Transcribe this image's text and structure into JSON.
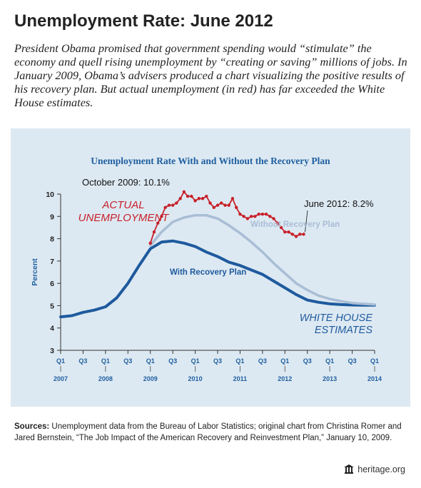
{
  "header": {
    "title": "Unemployment Rate: June 2012",
    "intro": "President Obama promised that government spending would “stimulate” the economy and quell rising unemployment by “creating or saving” millions of jobs. In January 2009, Obama’s advisers produced a chart visualizing the positive results of his recovery plan. But actual unemployment (in red) has far exceeded the White House estimates."
  },
  "sources": {
    "label": "Sources:",
    "text": " Unemployment data from the Bureau of Labor Statistics; original chart from Christina Romer and Jared Bernstein, “The Job Impact of the American Recovery and Reinvestment Plan,” January 10, 2009."
  },
  "footer": {
    "site": "heritage.org",
    "logo_icon": "bell-icon"
  },
  "colors": {
    "panel_bg": "#dde9f2",
    "title_blue": "#1f5fa0",
    "actual_red": "#c8202a",
    "with_plan_blue": "#1e5a9e",
    "without_plan_light": "#a9bdd6",
    "axis_dark": "#333333"
  },
  "chart_data": {
    "type": "line",
    "title": "Unemployment Rate With and Without the Recovery Plan",
    "ylabel": "Percent",
    "ylim": [
      3,
      10
    ],
    "yticks": [
      3,
      4,
      5,
      6,
      7,
      8,
      9,
      10
    ],
    "xlim": [
      2007.0,
      2014.0
    ],
    "x_quarter_ticks": [
      {
        "x": 2007.0,
        "label": "Q1"
      },
      {
        "x": 2007.5,
        "label": "Q3"
      },
      {
        "x": 2008.0,
        "label": "Q1"
      },
      {
        "x": 2008.5,
        "label": "Q3"
      },
      {
        "x": 2009.0,
        "label": "Q1"
      },
      {
        "x": 2009.5,
        "label": "Q3"
      },
      {
        "x": 2010.0,
        "label": "Q1"
      },
      {
        "x": 2010.5,
        "label": "Q3"
      },
      {
        "x": 2011.0,
        "label": "Q1"
      },
      {
        "x": 2011.5,
        "label": "Q3"
      },
      {
        "x": 2012.0,
        "label": "Q1"
      },
      {
        "x": 2012.5,
        "label": "Q3"
      },
      {
        "x": 2013.0,
        "label": "Q1"
      },
      {
        "x": 2013.5,
        "label": "Q3"
      },
      {
        "x": 2014.0,
        "label": "Q1"
      }
    ],
    "x_year_labels": [
      {
        "x": 2007.0,
        "label": "2007"
      },
      {
        "x": 2008.0,
        "label": "2008"
      },
      {
        "x": 2009.0,
        "label": "2009"
      },
      {
        "x": 2010.0,
        "label": "2010"
      },
      {
        "x": 2011.0,
        "label": "2011"
      },
      {
        "x": 2012.0,
        "label": "2012"
      },
      {
        "x": 2013.0,
        "label": "2013"
      },
      {
        "x": 2014.0,
        "label": "2014"
      }
    ],
    "series": [
      {
        "name": "With Recovery Plan",
        "style": "thick-dark-blue",
        "x": [
          2007.0,
          2007.25,
          2007.5,
          2007.75,
          2008.0,
          2008.25,
          2008.5,
          2008.75,
          2009.0,
          2009.25,
          2009.5,
          2009.75,
          2010.0,
          2010.25,
          2010.5,
          2010.75,
          2011.0,
          2011.25,
          2011.5,
          2011.75,
          2012.0,
          2012.25,
          2012.5,
          2012.75,
          2013.0,
          2013.25,
          2013.5,
          2013.75,
          2014.0
        ],
        "values": [
          4.5,
          4.55,
          4.7,
          4.8,
          4.95,
          5.35,
          6.0,
          6.8,
          7.55,
          7.85,
          7.9,
          7.8,
          7.65,
          7.4,
          7.2,
          6.95,
          6.8,
          6.6,
          6.4,
          6.1,
          5.8,
          5.5,
          5.25,
          5.15,
          5.08,
          5.05,
          5.03,
          5.02,
          5.02
        ]
      },
      {
        "name": "Without Recovery Plan",
        "style": "light-blue",
        "x": [
          2009.0,
          2009.25,
          2009.5,
          2009.75,
          2010.0,
          2010.25,
          2010.5,
          2010.75,
          2011.0,
          2011.25,
          2011.5,
          2011.75,
          2012.0,
          2012.25,
          2012.5,
          2012.75,
          2013.0,
          2013.25,
          2013.5,
          2013.75,
          2014.0
        ],
        "values": [
          7.7,
          8.3,
          8.75,
          8.95,
          9.05,
          9.05,
          8.9,
          8.6,
          8.25,
          7.85,
          7.4,
          6.9,
          6.45,
          6.0,
          5.7,
          5.45,
          5.3,
          5.2,
          5.12,
          5.08,
          5.05
        ]
      },
      {
        "name": "Actual Unemployment",
        "style": "red-markers",
        "x": [
          2009.0,
          2009.083,
          2009.167,
          2009.25,
          2009.333,
          2009.417,
          2009.5,
          2009.583,
          2009.667,
          2009.75,
          2009.833,
          2009.917,
          2010.0,
          2010.083,
          2010.167,
          2010.25,
          2010.333,
          2010.417,
          2010.5,
          2010.583,
          2010.667,
          2010.75,
          2010.833,
          2010.917,
          2011.0,
          2011.083,
          2011.167,
          2011.25,
          2011.333,
          2011.417,
          2011.5,
          2011.583,
          2011.667,
          2011.75,
          2011.833,
          2011.917,
          2012.0,
          2012.083,
          2012.167,
          2012.25,
          2012.333,
          2012.417
        ],
        "values": [
          7.8,
          8.3,
          8.7,
          9.0,
          9.4,
          9.5,
          9.5,
          9.6,
          9.8,
          10.1,
          9.9,
          9.9,
          9.7,
          9.8,
          9.8,
          9.9,
          9.6,
          9.4,
          9.5,
          9.6,
          9.5,
          9.5,
          9.8,
          9.4,
          9.1,
          9.0,
          8.9,
          9.0,
          9.0,
          9.1,
          9.1,
          9.1,
          9.0,
          8.9,
          8.7,
          8.5,
          8.3,
          8.3,
          8.2,
          8.1,
          8.2,
          8.2
        ]
      }
    ],
    "annotations": {
      "actual_label": "ACTUAL UNEMPLOYMENT",
      "actual_label_line1": "ACTUAL",
      "actual_label_line2": "UNEMPLOYMENT",
      "peak_label": "October 2009: 10.1%",
      "peak_point": {
        "x": 2009.75,
        "y": 10.1
      },
      "latest_label": "June 2012: 8.2%",
      "latest_point": {
        "x": 2012.417,
        "y": 8.2
      },
      "without_label": "Without Recovery Plan",
      "with_label": "With Recovery Plan",
      "wh_label_line1": "WHITE HOUSE",
      "wh_label_line2": "ESTIMATES"
    },
    "grid": false
  }
}
